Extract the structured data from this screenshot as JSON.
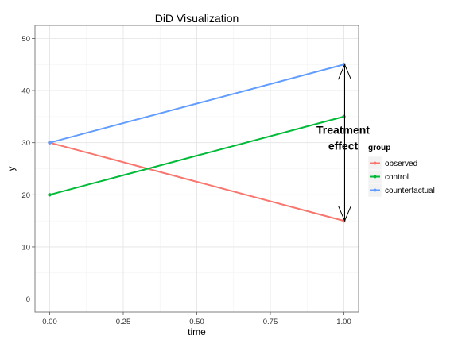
{
  "chart_data": {
    "type": "line",
    "title": "DiD Visualization",
    "xlabel": "time",
    "ylabel": "y",
    "xlim": [
      -0.05,
      1.05
    ],
    "ylim": [
      -2.5,
      52.5
    ],
    "x_ticks": [
      0.0,
      0.25,
      0.5,
      0.75,
      1.0
    ],
    "x_tick_labels": [
      "0.00",
      "0.25",
      "0.50",
      "0.75",
      "1.00"
    ],
    "y_ticks": [
      0,
      10,
      20,
      30,
      40,
      50
    ],
    "y_tick_labels": [
      "0",
      "10",
      "20",
      "30",
      "40",
      "50"
    ],
    "grid": true,
    "legend": {
      "title": "group",
      "position": "right"
    },
    "series": [
      {
        "name": "observed",
        "color": "#F8766D",
        "x": [
          0,
          1
        ],
        "y": [
          30,
          15
        ]
      },
      {
        "name": "control",
        "color": "#00BA38",
        "x": [
          0,
          1
        ],
        "y": [
          20,
          35
        ]
      },
      {
        "name": "counterfactual",
        "color": "#619CFF",
        "x": [
          0,
          1
        ],
        "y": [
          30,
          45
        ]
      }
    ],
    "annotations": [
      {
        "text_lines": [
          "Treatment",
          "effect"
        ],
        "x": 1.0,
        "y_from": 15,
        "y_to": 45
      }
    ]
  }
}
